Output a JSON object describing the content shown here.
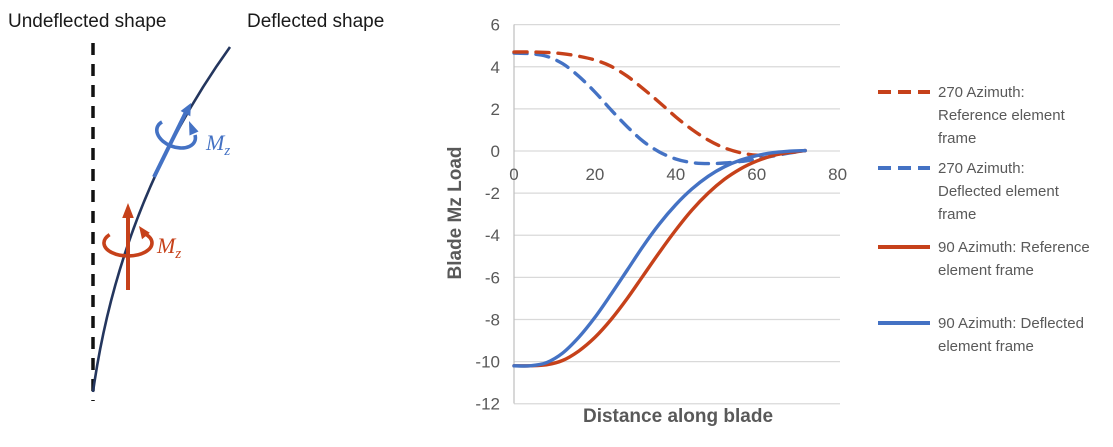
{
  "diagram": {
    "undeflected_label": "Undeflected shape",
    "deflected_label": "Deflected shape",
    "moment_label": "M",
    "moment_sub": "z"
  },
  "colors": {
    "red": "#C6411A",
    "blue": "#4472C4",
    "beam_navy": "#24365E",
    "dash_black": "#111111",
    "axis_text": "#595959",
    "gridline": "#D9D9D9",
    "axis_line": "#BFBFBF"
  },
  "chart_data": {
    "type": "line",
    "title": "",
    "xlabel": "Distance along blade",
    "ylabel": "Blade Mz Load",
    "xlim": [
      0,
      80
    ],
    "ylim": [
      -12,
      6
    ],
    "x_ticks": [
      0,
      20,
      40,
      60,
      80
    ],
    "y_ticks": [
      6,
      4,
      2,
      0,
      -2,
      -4,
      -6,
      -8,
      -10,
      -12
    ],
    "grid": true,
    "legend_position": "right",
    "x": [
      0,
      4,
      8,
      12,
      16,
      20,
      24,
      28,
      32,
      36,
      40,
      44,
      48,
      52,
      56,
      60,
      64,
      68,
      72
    ],
    "series": [
      {
        "name": "270 Azimuth: Reference element frame",
        "legend_lines": [
          "270 Azimuth:",
          "Reference element",
          "frame"
        ],
        "color": "#C6411A",
        "dash": true,
        "values": [
          4.7,
          4.7,
          4.68,
          4.62,
          4.5,
          4.32,
          4.02,
          3.55,
          2.95,
          2.3,
          1.62,
          1.02,
          0.52,
          0.15,
          -0.08,
          -0.2,
          -0.17,
          -0.08,
          0.02
        ]
      },
      {
        "name": "270 Azimuth: Deflected element frame",
        "legend_lines": [
          "270 Azimuth:",
          "Deflected element",
          "frame"
        ],
        "color": "#4472C4",
        "dash": true,
        "values": [
          4.65,
          4.62,
          4.5,
          4.15,
          3.55,
          2.8,
          1.95,
          1.15,
          0.45,
          -0.05,
          -0.38,
          -0.55,
          -0.6,
          -0.57,
          -0.5,
          -0.38,
          -0.24,
          -0.1,
          0.02
        ]
      },
      {
        "name": "90 Azimuth: Reference element frame",
        "legend_lines": [
          "90 Azimuth: Reference",
          "element frame"
        ],
        "color": "#C6411A",
        "dash": false,
        "values": [
          -10.2,
          -10.2,
          -10.15,
          -9.95,
          -9.5,
          -8.85,
          -8.0,
          -7.0,
          -5.9,
          -4.8,
          -3.75,
          -2.8,
          -2.0,
          -1.35,
          -0.85,
          -0.48,
          -0.22,
          -0.07,
          0.02
        ]
      },
      {
        "name": "90 Azimuth: Deflected element frame",
        "legend_lines": [
          "90 Azimuth: Deflected",
          "element frame"
        ],
        "color": "#4472C4",
        "dash": false,
        "values": [
          -10.2,
          -10.2,
          -10.05,
          -9.6,
          -8.85,
          -7.9,
          -6.8,
          -5.65,
          -4.5,
          -3.45,
          -2.55,
          -1.8,
          -1.2,
          -0.75,
          -0.43,
          -0.22,
          -0.08,
          -0.01,
          0.02
        ]
      }
    ]
  }
}
